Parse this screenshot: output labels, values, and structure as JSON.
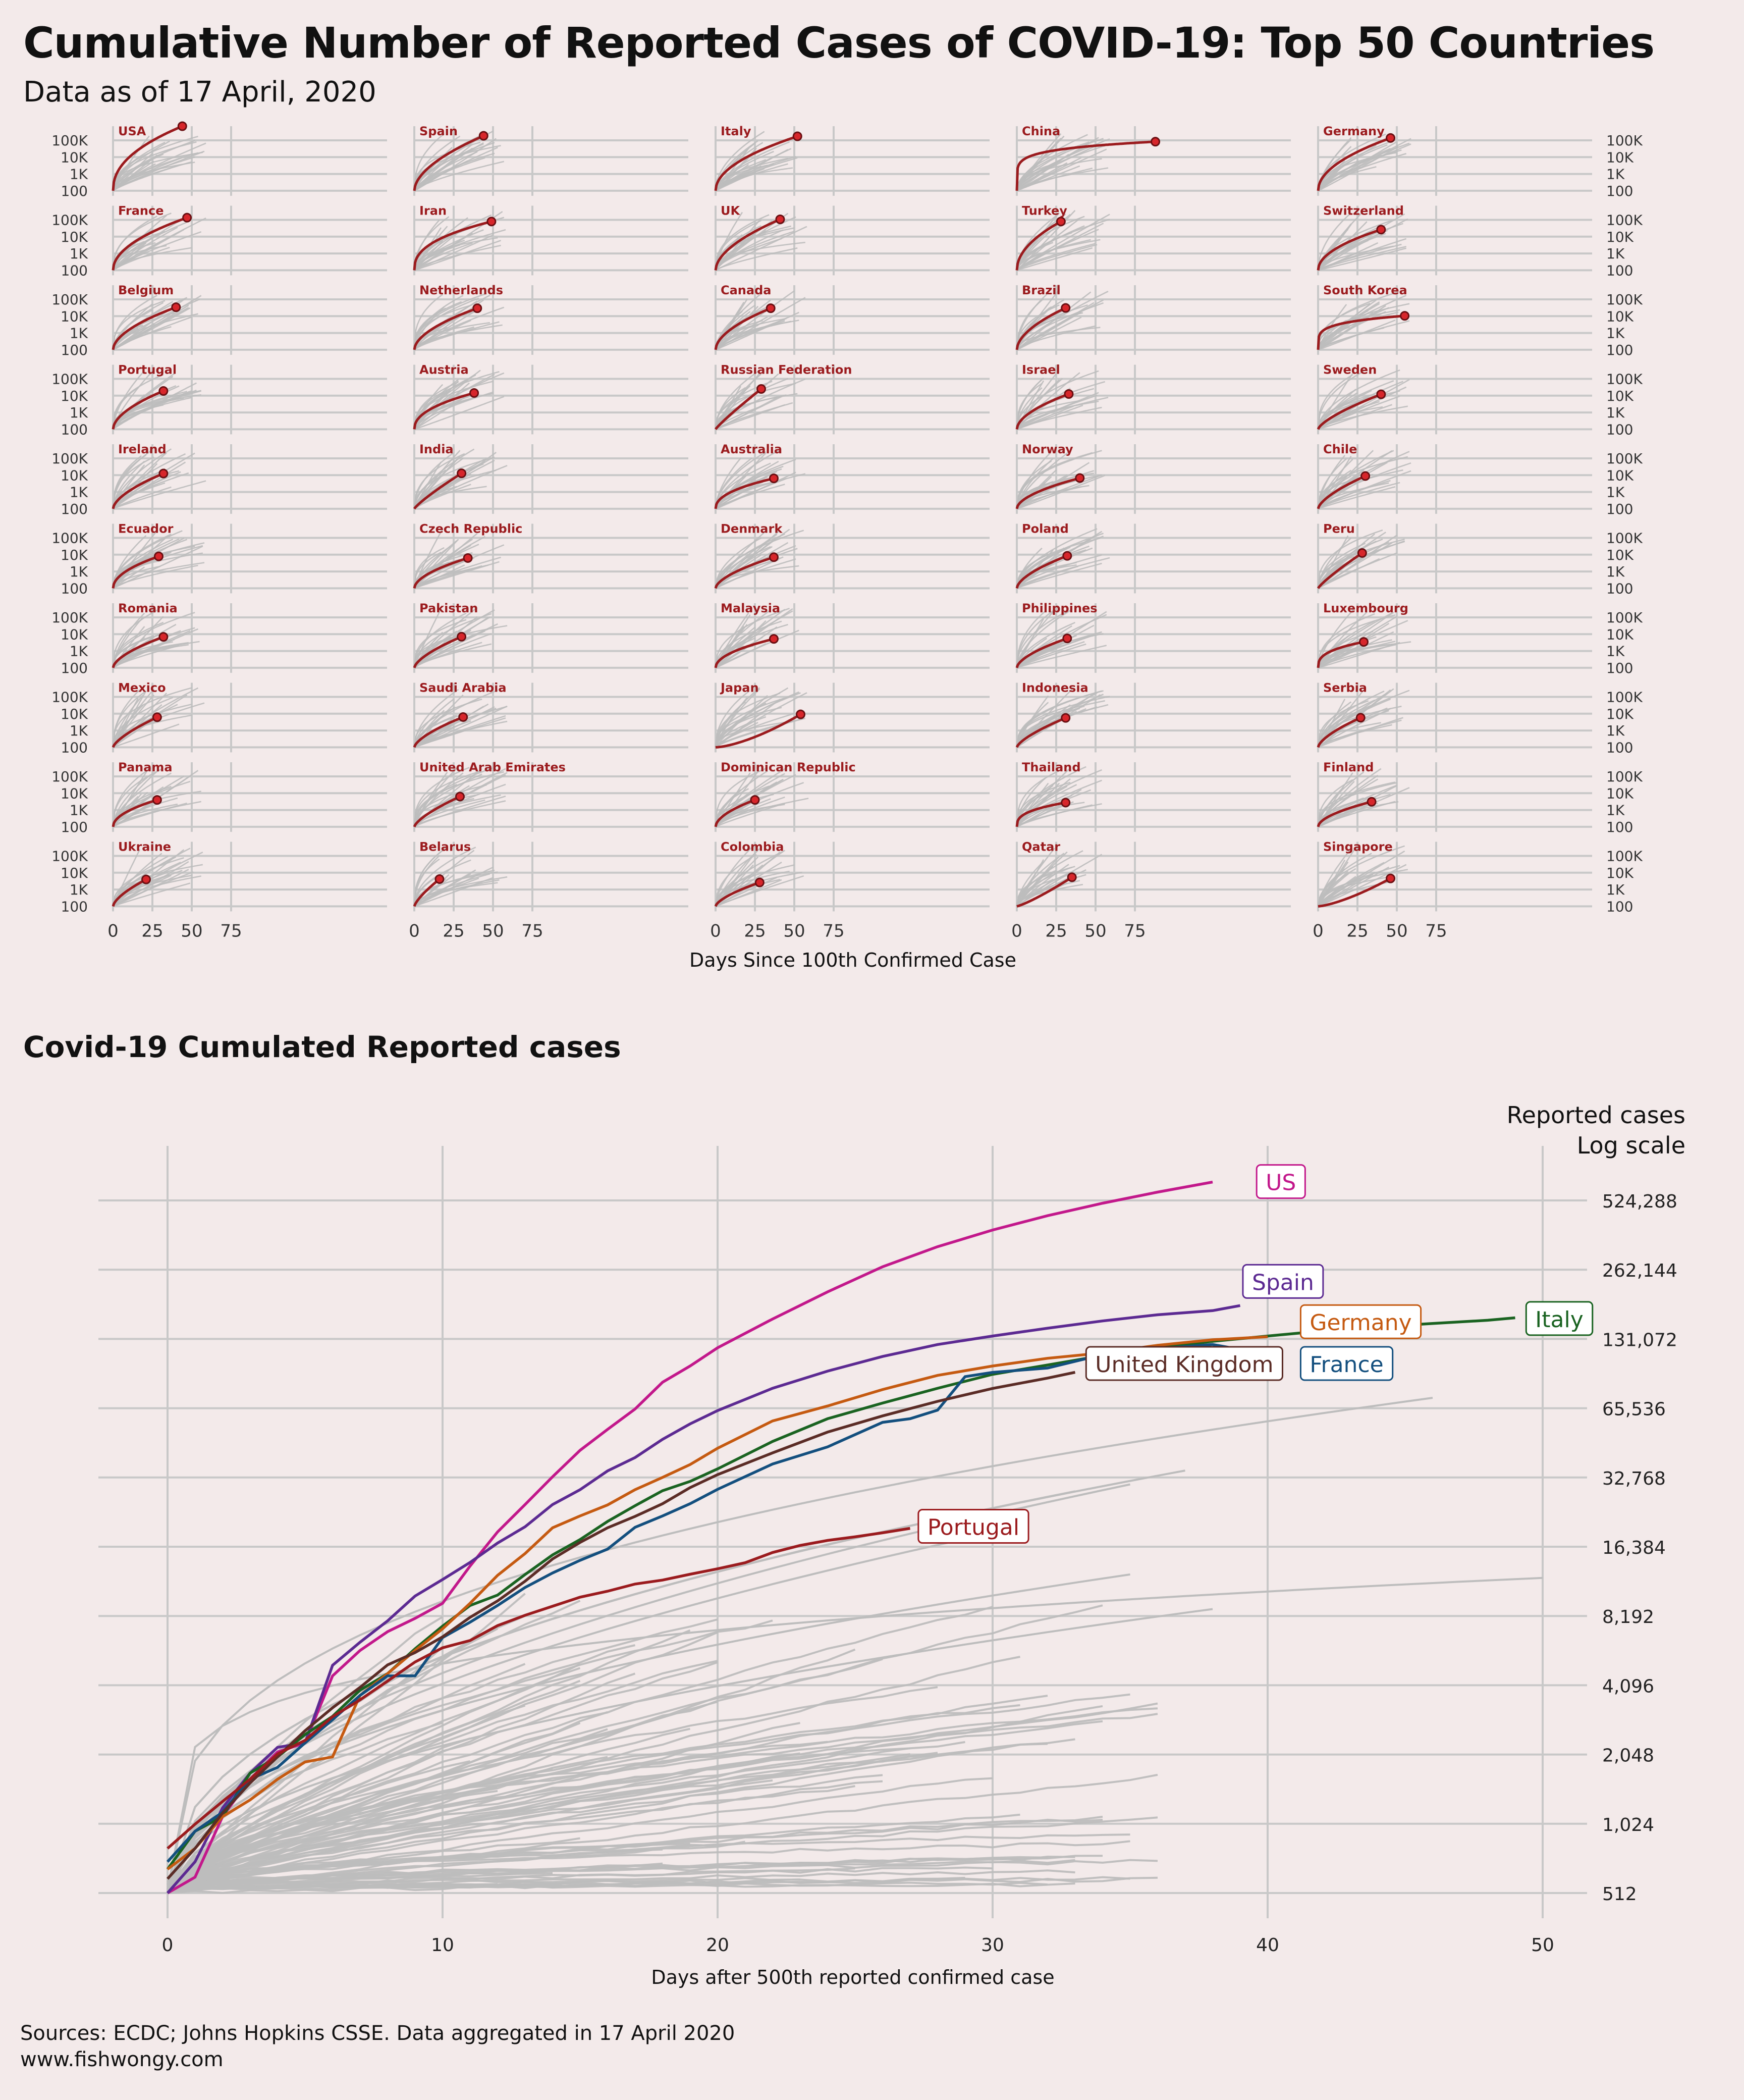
{
  "title": "Cumulative Number of Reported Cases of COVID-19: Top 50 Countries",
  "subtitle": "Data as of 17 April, 2020",
  "colors": {
    "background": "#f3eaea",
    "highlight": "#9b1b1e",
    "context": "#bdbdbd",
    "grid": "#c8c8c8"
  },
  "small_multiples": {
    "x_axis_label": "Days Since 100th Confirmed Case",
    "x_ticks": [
      "0",
      "25",
      "50",
      "75"
    ],
    "y_ticks": [
      "100",
      "1K",
      "10K",
      "100K"
    ],
    "panels": [
      {
        "name": "USA",
        "days": 44,
        "end_log": 5.84,
        "shape": 0.45
      },
      {
        "name": "Spain",
        "days": 44,
        "end_log": 5.27,
        "shape": 0.55
      },
      {
        "name": "Italy",
        "days": 52,
        "end_log": 5.24,
        "shape": 0.5
      },
      {
        "name": "China",
        "days": 88,
        "end_log": 4.92,
        "shape": 0.15
      },
      {
        "name": "Germany",
        "days": 46,
        "end_log": 5.14,
        "shape": 0.5
      },
      {
        "name": "France",
        "days": 47,
        "end_log": 5.13,
        "shape": 0.5
      },
      {
        "name": "Iran",
        "days": 49,
        "end_log": 4.9,
        "shape": 0.4
      },
      {
        "name": "UK",
        "days": 41,
        "end_log": 5.03,
        "shape": 0.55
      },
      {
        "name": "Turkey",
        "days": 28,
        "end_log": 4.9,
        "shape": 0.5
      },
      {
        "name": "Switzerland",
        "days": 40,
        "end_log": 4.42,
        "shape": 0.5
      },
      {
        "name": "Belgium",
        "days": 40,
        "end_log": 4.53,
        "shape": 0.55
      },
      {
        "name": "Netherlands",
        "days": 40,
        "end_log": 4.47,
        "shape": 0.55
      },
      {
        "name": "Canada",
        "days": 35,
        "end_log": 4.47,
        "shape": 0.55
      },
      {
        "name": "Brazil",
        "days": 31,
        "end_log": 4.49,
        "shape": 0.55
      },
      {
        "name": "South Korea",
        "days": 55,
        "end_log": 4.02,
        "shape": 0.2
      },
      {
        "name": "Portugal",
        "days": 32,
        "end_log": 4.28,
        "shape": 0.55
      },
      {
        "name": "Austria",
        "days": 38,
        "end_log": 4.16,
        "shape": 0.45
      },
      {
        "name": "Russian Federation",
        "days": 29,
        "end_log": 4.4,
        "shape": 0.9
      },
      {
        "name": "Israel",
        "days": 33,
        "end_log": 4.1,
        "shape": 0.55
      },
      {
        "name": "Sweden",
        "days": 40,
        "end_log": 4.08,
        "shape": 0.7
      },
      {
        "name": "Ireland",
        "days": 32,
        "end_log": 4.1,
        "shape": 0.6
      },
      {
        "name": "India",
        "days": 30,
        "end_log": 4.11,
        "shape": 0.85
      },
      {
        "name": "Australia",
        "days": 37,
        "end_log": 3.81,
        "shape": 0.45
      },
      {
        "name": "Norway",
        "days": 40,
        "end_log": 3.83,
        "shape": 0.55
      },
      {
        "name": "Chile",
        "days": 30,
        "end_log": 3.95,
        "shape": 0.65
      },
      {
        "name": "Ecuador",
        "days": 29,
        "end_log": 3.9,
        "shape": 0.5
      },
      {
        "name": "Czech Republic",
        "days": 34,
        "end_log": 3.8,
        "shape": 0.55
      },
      {
        "name": "Denmark",
        "days": 37,
        "end_log": 3.85,
        "shape": 0.6
      },
      {
        "name": "Poland",
        "days": 32,
        "end_log": 3.93,
        "shape": 0.6
      },
      {
        "name": "Peru",
        "days": 28,
        "end_log": 4.1,
        "shape": 0.85
      },
      {
        "name": "Romania",
        "days": 32,
        "end_log": 3.84,
        "shape": 0.6
      },
      {
        "name": "Pakistan",
        "days": 30,
        "end_log": 3.85,
        "shape": 0.65
      },
      {
        "name": "Malaysia",
        "days": 37,
        "end_log": 3.72,
        "shape": 0.5
      },
      {
        "name": "Philippines",
        "days": 32,
        "end_log": 3.75,
        "shape": 0.6
      },
      {
        "name": "Luxembourg",
        "days": 29,
        "end_log": 3.54,
        "shape": 0.35
      },
      {
        "name": "Mexico",
        "days": 28,
        "end_log": 3.79,
        "shape": 0.7
      },
      {
        "name": "Saudi Arabia",
        "days": 31,
        "end_log": 3.8,
        "shape": 0.65
      },
      {
        "name": "Japan",
        "days": 54,
        "end_log": 3.96,
        "shape": 1.5
      },
      {
        "name": "Indonesia",
        "days": 31,
        "end_log": 3.75,
        "shape": 0.7
      },
      {
        "name": "Serbia",
        "days": 27,
        "end_log": 3.76,
        "shape": 0.65
      },
      {
        "name": "Panama",
        "days": 28,
        "end_log": 3.6,
        "shape": 0.5
      },
      {
        "name": "United Arab Emirates",
        "days": 29,
        "end_log": 3.8,
        "shape": 0.7
      },
      {
        "name": "Dominican Republic",
        "days": 25,
        "end_log": 3.6,
        "shape": 0.55
      },
      {
        "name": "Thailand",
        "days": 31,
        "end_log": 3.44,
        "shape": 0.35
      },
      {
        "name": "Finland",
        "days": 34,
        "end_log": 3.49,
        "shape": 0.55
      },
      {
        "name": "Ukraine",
        "days": 21,
        "end_log": 3.6,
        "shape": 0.65
      },
      {
        "name": "Belarus",
        "days": 16,
        "end_log": 3.62,
        "shape": 0.75
      },
      {
        "name": "Colombia",
        "days": 28,
        "end_log": 3.42,
        "shape": 0.65
      },
      {
        "name": "Qatar",
        "days": 35,
        "end_log": 3.73,
        "shape": 1.2
      },
      {
        "name": "Singapore",
        "days": 46,
        "end_log": 3.66,
        "shape": 1.4
      }
    ]
  },
  "section2_title": "Covid-19 Cumulated Reported cases",
  "chart_data": {
    "type": "line",
    "title": "Covid-19 Cumulated Reported cases",
    "xlabel": "Days after 500th reported confirmed case",
    "ylabel": "Reported cases Log scale",
    "ylabel_lines": [
      "Reported cases",
      "Log scale"
    ],
    "xlim": [
      -2.5,
      52.5
    ],
    "y_scale": "log2",
    "ylim_log2": [
      8.8,
      19.8
    ],
    "x_ticks": [
      0,
      10,
      20,
      30,
      40,
      50
    ],
    "y_ticks": [
      {
        "value": 512,
        "label": "512"
      },
      {
        "value": 1024,
        "label": "1,024"
      },
      {
        "value": 2048,
        "label": "2,048"
      },
      {
        "value": 4096,
        "label": "4,096"
      },
      {
        "value": 8192,
        "label": "8,192"
      },
      {
        "value": 16384,
        "label": "16,384"
      },
      {
        "value": 32768,
        "label": "32,768"
      },
      {
        "value": 65536,
        "label": "65,536"
      },
      {
        "value": 131072,
        "label": "131,072"
      },
      {
        "value": 262144,
        "label": "262,144"
      },
      {
        "value": 524288,
        "label": "524,288"
      }
    ],
    "grid": true,
    "series": [
      {
        "name": "US",
        "color": "#c2188b",
        "x": [
          0,
          1,
          2,
          3,
          4,
          5,
          6,
          7,
          8,
          9,
          10,
          11,
          12,
          13,
          14,
          15,
          16,
          17,
          18,
          19,
          20,
          22,
          24,
          26,
          28,
          30,
          32,
          34,
          36,
          38
        ],
        "y": [
          512,
          600,
          1100,
          1600,
          2100,
          2300,
          4500,
          5800,
          7000,
          8000,
          9300,
          13500,
          19000,
          25000,
          33000,
          43000,
          53000,
          65000,
          85000,
          100000,
          120000,
          160000,
          210000,
          270000,
          330000,
          390000,
          450000,
          510000,
          570000,
          630000
        ]
      },
      {
        "name": "Spain",
        "color": "#5c2a92",
        "x": [
          0,
          1,
          2,
          3,
          4,
          5,
          6,
          7,
          8,
          9,
          10,
          11,
          12,
          13,
          14,
          15,
          16,
          17,
          18,
          19,
          20,
          22,
          24,
          26,
          28,
          30,
          32,
          34,
          36,
          38,
          39
        ],
        "y": [
          512,
          700,
          1200,
          1700,
          2200,
          2300,
          5000,
          6300,
          7800,
          10000,
          11800,
          14000,
          17000,
          20000,
          25000,
          29000,
          35000,
          40000,
          48000,
          56000,
          64000,
          80000,
          95000,
          110000,
          124000,
          135000,
          146000,
          157000,
          167000,
          174000,
          183000
        ]
      },
      {
        "name": "Italy",
        "color": "#1a6321",
        "x": [
          0,
          1,
          2,
          3,
          4,
          5,
          6,
          7,
          8,
          9,
          10,
          11,
          12,
          13,
          14,
          15,
          16,
          17,
          18,
          19,
          20,
          22,
          24,
          26,
          28,
          30,
          32,
          34,
          36,
          38,
          40,
          42,
          44,
          46,
          48,
          49
        ],
        "y": [
          650,
          950,
          1100,
          1700,
          2000,
          2500,
          3000,
          3900,
          4600,
          5900,
          7400,
          9100,
          10100,
          12400,
          15100,
          17600,
          21100,
          24700,
          28700,
          31500,
          35700,
          47000,
          59000,
          69000,
          80000,
          92000,
          101000,
          111000,
          120000,
          128000,
          135000,
          142000,
          148000,
          153000,
          158000,
          162000
        ]
      },
      {
        "name": "Germany",
        "color": "#c55a11",
        "x": [
          0,
          1,
          2,
          3,
          4,
          5,
          6,
          7,
          8,
          9,
          10,
          11,
          12,
          13,
          14,
          15,
          16,
          17,
          18,
          19,
          20,
          22,
          24,
          26,
          28,
          30,
          32,
          34,
          36,
          38,
          40
        ],
        "y": [
          650,
          800,
          1100,
          1300,
          1600,
          1900,
          2000,
          3700,
          4600,
          5800,
          7200,
          9300,
          12300,
          15300,
          19800,
          22300,
          24900,
          29000,
          32800,
          37300,
          43900,
          57700,
          67000,
          79000,
          91000,
          100000,
          108000,
          114000,
          123000,
          130000,
          134000
        ]
      },
      {
        "name": "France",
        "color": "#134f7e",
        "x": [
          0,
          1,
          2,
          3,
          4,
          5,
          6,
          7,
          8,
          9,
          10,
          11,
          12,
          13,
          14,
          15,
          16,
          17,
          18,
          19,
          20,
          22,
          24,
          26,
          27,
          28,
          29,
          30,
          32,
          34,
          36,
          38,
          39
        ],
        "y": [
          700,
          950,
          1150,
          1600,
          1800,
          2300,
          2900,
          3700,
          4500,
          4500,
          6600,
          7700,
          9100,
          10900,
          12600,
          14300,
          16000,
          19900,
          22300,
          25200,
          29100,
          37500,
          44500,
          56900,
          59000,
          64300,
          89900,
          93800,
          98000,
          112000,
          119000,
          124000,
          118000
        ]
      },
      {
        "name": "United Kingdom",
        "color": "#5b2c26",
        "x": [
          0,
          1,
          2,
          3,
          4,
          5,
          6,
          7,
          8,
          9,
          10,
          11,
          12,
          13,
          14,
          15,
          16,
          17,
          18,
          19,
          20,
          22,
          24,
          26,
          28,
          30,
          32,
          33
        ],
        "y": [
          590,
          800,
          1140,
          1540,
          2000,
          2600,
          3270,
          4010,
          5020,
          5680,
          6650,
          8080,
          9530,
          11600,
          14500,
          17100,
          19800,
          22200,
          25200,
          29600,
          33700,
          41900,
          51600,
          60700,
          70200,
          79900,
          88600,
          93900
        ]
      },
      {
        "name": "Portugal",
        "color": "#9b1b1e",
        "x": [
          0,
          1,
          2,
          3,
          4,
          5,
          6,
          7,
          8,
          9,
          10,
          11,
          12,
          13,
          14,
          15,
          16,
          17,
          18,
          19,
          20,
          21,
          22,
          23,
          24,
          25,
          26,
          27
        ],
        "y": [
          800,
          1020,
          1280,
          1600,
          2060,
          2360,
          2990,
          3540,
          4270,
          5170,
          5960,
          6410,
          7440,
          8250,
          9030,
          9890,
          10500,
          11280,
          11730,
          12440,
          13140,
          13960,
          15470,
          16590,
          17450,
          18090,
          18840,
          19690
        ]
      }
    ],
    "labels": [
      {
        "series": "US",
        "text": "US",
        "x": 39.6,
        "y": 630000
      },
      {
        "series": "Spain",
        "text": "Spain",
        "x": 39.1,
        "y": 232000
      },
      {
        "series": "Germany",
        "text": "Germany",
        "x": 41.2,
        "y": 155000
      },
      {
        "series": "Italy",
        "text": "Italy",
        "x": 49.4,
        "y": 160000
      },
      {
        "series": "United Kingdom",
        "text": "United Kingdom",
        "x": 33.4,
        "y": 102000
      },
      {
        "series": "France",
        "text": "France",
        "x": 41.2,
        "y": 102000
      },
      {
        "series": "Portugal",
        "text": "Portugal",
        "x": 27.3,
        "y": 20000
      }
    ]
  },
  "source_lines": [
    "Sources: ECDC; Johns Hopkins CSSE. Data aggregated in 17 April 2020",
    "www.fishwongy.com"
  ]
}
